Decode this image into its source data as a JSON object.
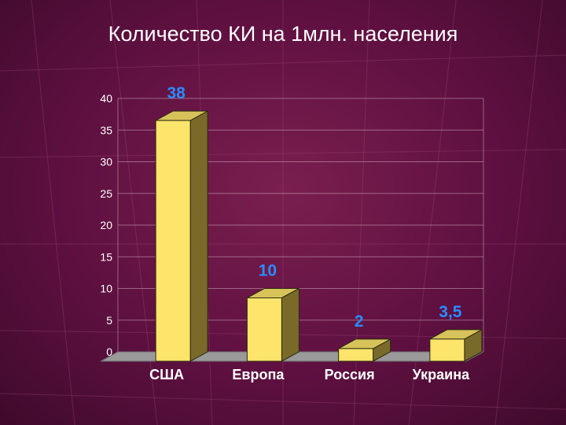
{
  "chart_data": {
    "type": "bar",
    "title": "Количество КИ на 1млн. населения",
    "categories": [
      "США",
      "Европа",
      "Россия",
      "Украина"
    ],
    "values": [
      38,
      10,
      2,
      3.5
    ],
    "data_labels": [
      "38",
      "10",
      "2",
      "3,5"
    ],
    "ylim": [
      0,
      40
    ],
    "yticks": [
      0,
      5,
      10,
      15,
      20,
      25,
      30,
      35,
      40
    ],
    "xlabel": "",
    "ylabel": "",
    "grid": true,
    "legend": "none",
    "colors": {
      "bar_front": "#fde46a",
      "bar_side": "#7a6a2a",
      "bar_top": "#d8c35a",
      "data_label": "#2a8cff",
      "floor": "#9a9a9a",
      "grid": "#ffffff",
      "tick_label": "#ffffff",
      "category_label": "#ffffff"
    }
  }
}
